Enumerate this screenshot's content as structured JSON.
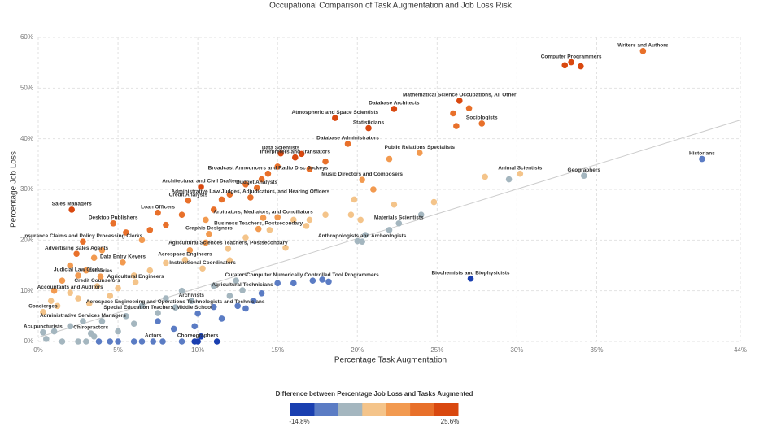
{
  "chart_data": {
    "type": "scatter",
    "title": "Occupational Comparison of Task Augmentation and Job Loss Risk",
    "x_label": "Percentage Task Augmentation",
    "y_label": "Percentage Job Loss",
    "xlim": [
      0,
      44
    ],
    "ylim": [
      0,
      60
    ],
    "xticks": [
      {
        "value": 0,
        "label": "0%"
      },
      {
        "value": 5,
        "label": "5%"
      },
      {
        "value": 10,
        "label": "10%"
      },
      {
        "value": 15,
        "label": "15%"
      },
      {
        "value": 20,
        "label": "20%"
      },
      {
        "value": 25,
        "label": "25%"
      },
      {
        "value": 30,
        "label": "30%"
      },
      {
        "value": 35,
        "label": "35%"
      },
      {
        "value": 44,
        "label": "44%"
      }
    ],
    "yticks": [
      {
        "value": 0,
        "label": "0%"
      },
      {
        "value": 10,
        "label": "10%"
      },
      {
        "value": 20,
        "label": "20%"
      },
      {
        "value": 30,
        "label": "30%"
      },
      {
        "value": 40,
        "label": "40%"
      },
      {
        "value": 50,
        "label": "50%"
      },
      {
        "value": 60,
        "label": "60%"
      }
    ],
    "grid": true,
    "x": [
      37.9,
      33.4,
      26.4,
      22.3,
      18.6,
      27.8,
      20.7,
      19.4,
      23.9,
      15.2,
      16.1,
      41.6,
      30.2,
      34.2,
      14.4,
      20.3,
      10.2,
      13.7,
      13.3,
      9.4,
      2.1,
      7.5,
      14.1,
      22.6,
      4.7,
      13.8,
      10.7,
      20.3,
      2.8,
      11.9,
      2.4,
      9.2,
      5.3,
      10.3,
      2.5,
      3.9,
      17.2,
      27.1,
      12.4,
      6.1,
      3.7,
      12.8,
      9.6,
      8.6,
      7.5,
      0.3,
      2.0,
      2.8,
      0.3,
      3.3,
      7.2,
      10.0,
      33.0,
      34.0,
      26.0,
      27.0,
      26.2,
      29.5,
      28.0,
      24.8,
      24.0,
      22.3,
      19.8,
      19.6,
      21.0,
      20.2,
      22.0,
      18.0,
      17.0,
      16.5,
      15.0,
      14.0,
      13.0,
      12.0,
      11.5,
      11.0,
      10.5,
      9.0,
      8.0,
      7.0,
      6.5,
      5.5,
      4.0,
      3.5,
      3.0,
      2.0,
      1.5,
      1.0,
      0.8,
      1.2,
      2.5,
      3.2,
      4.5,
      5.0,
      6.0,
      7.0,
      8.0,
      9.5,
      10.5,
      13.0,
      14.5,
      15.0,
      16.0,
      15.5,
      12.0,
      11.0,
      9.0,
      8.0,
      6.5,
      5.5,
      4.0,
      2.0,
      1.0,
      0.5,
      1.5,
      2.5,
      3.0,
      3.8,
      4.5,
      5.0,
      6.0,
      6.5,
      7.8,
      9.0,
      9.8,
      11.2,
      10.0,
      11.0,
      12.0,
      12.5,
      13.5,
      14.0,
      15.0,
      16.0,
      17.8,
      18.2,
      10.2,
      11.5,
      13.0,
      9.8,
      8.5,
      7.5,
      6.0,
      5.0,
      3.5,
      20.5,
      22.0,
      18.0,
      17.0,
      16.8,
      20.0
    ],
    "values": [
      57.3,
      55.1,
      47.5,
      45.9,
      44.1,
      43.0,
      42.1,
      39.0,
      37.2,
      37.1,
      36.3,
      36.0,
      33.1,
      32.7,
      33.1,
      31.9,
      30.5,
      30.3,
      28.4,
      27.8,
      26.0,
      25.4,
      24.4,
      23.3,
      23.3,
      22.2,
      21.2,
      19.7,
      19.7,
      18.3,
      17.3,
      16.1,
      15.6,
      14.4,
      13.0,
      12.8,
      12.0,
      12.4,
      12.0,
      11.7,
      10.9,
      10.1,
      8.0,
      6.7,
      5.6,
      5.8,
      9.6,
      4.0,
      1.8,
      1.6,
      0,
      0,
      54.5,
      54.3,
      45.0,
      46.0,
      42.5,
      32.0,
      32.5,
      27.5,
      25.0,
      27.0,
      28.0,
      25.0,
      30.0,
      24.0,
      36.0,
      35.5,
      34.0,
      37.0,
      34.5,
      32.0,
      31.0,
      29.0,
      28.0,
      26.0,
      24.0,
      25.0,
      23.0,
      22.0,
      20.0,
      21.5,
      18.0,
      16.5,
      14.0,
      15.0,
      12.0,
      10.0,
      8.0,
      7.0,
      8.5,
      7.5,
      9.0,
      10.5,
      13.0,
      14.0,
      15.5,
      18.0,
      19.5,
      20.5,
      22.0,
      24.5,
      24.0,
      18.5,
      16.0,
      11.0,
      10.0,
      8.5,
      7.0,
      5.0,
      4.0,
      3.0,
      2.0,
      0.5,
      0,
      0,
      0,
      0,
      0,
      0,
      0,
      0,
      0,
      0,
      0,
      0,
      5.5,
      6.8,
      9.0,
      7.0,
      8.0,
      9.5,
      11.5,
      11.5,
      12.2,
      11.8,
      1.0,
      4.5,
      6.5,
      3.0,
      2.5,
      4.0,
      3.5,
      2.0,
      1.0,
      21.0,
      22.0,
      25.0,
      24.0,
      22.8,
      19.8
    ],
    "labels": [
      "Writers and Authors",
      "Computer Programmers",
      "Mathematical Science Occupations, All Other",
      "Database Architects",
      "Atmospheric and Space Scientists",
      "Sociologists",
      "Statisticians",
      "Database Administrators",
      "Public Relations Specialists",
      "Data Scientists",
      "Interpreters and Translators",
      "Historians",
      "Animal Scientists",
      "Geographers",
      "Broadcast Announcers and Radio Disc Jockeys",
      "Music Directors and Composers",
      "Architectural and Civil Drafters",
      "Budget Analysts",
      "Administrative Law Judges, Adjudicators, and Hearing Officers",
      "Credit Analysts",
      "Sales Managers",
      "Loan Officers",
      "Arbitrators, Mediators, and Conciliators",
      "Materials Scientists",
      "Desktop Publishers",
      "Business Teachers, Postsecondary",
      "Graphic Designers",
      "Anthropologists and Archeologists",
      "Insurance Claims and Policy Processing Clerks",
      "Agricultural Sciences Teachers, Postsecondary",
      "Advertising Sales Agents",
      "Aerospace Engineers",
      "Data Entry Keyers",
      "Instructional Coordinators",
      "Judicial Law Clerks",
      "Actuaries",
      "Computer Numerically Controlled Tool Programmers",
      "Biochemists and Biophysicists",
      "Curators",
      "Agricultural Engineers",
      "Credit Counselors",
      "Agricultural Technicians",
      "Archivists",
      "Aerospace Engineering and Operations Technologists and Technicians",
      "Special Education Teachers, Middle School",
      "Concierges",
      "Accountants and Auditors",
      "Administrative Services Managers",
      "Acupuncturists",
      "Chiropractors",
      "Actors",
      "Choreographers",
      null,
      null,
      null,
      null,
      null,
      null,
      null,
      null,
      null,
      null,
      null,
      null,
      null,
      null,
      null,
      null,
      null,
      null,
      null,
      null,
      null,
      null,
      null,
      null,
      null,
      null,
      null,
      null,
      null,
      null,
      null,
      null,
      null,
      null,
      null,
      null,
      null,
      null,
      null,
      null,
      null,
      null,
      null,
      null,
      null,
      null,
      null,
      null,
      null,
      null,
      null,
      null,
      null,
      null,
      null,
      null,
      null,
      null,
      null,
      null,
      null,
      null,
      null,
      null,
      null,
      null,
      null,
      null,
      null,
      null,
      null,
      null,
      null,
      null,
      null,
      null,
      null,
      null,
      null,
      null,
      null,
      null,
      null,
      null,
      null,
      null,
      null,
      null,
      null,
      null,
      null,
      null,
      null,
      null,
      null,
      null,
      null,
      null
    ],
    "trendline": {
      "x": [
        0,
        44
      ],
      "values": [
        0.8,
        43.7
      ],
      "color": "#cccccc"
    },
    "colorbar": {
      "title": "Difference between Percentage Job Loss and Tasks Augmented",
      "colors": [
        "#1a3fb0",
        "#5b7cc4",
        "#a4b6bf",
        "#f4c48a",
        "#f29a50",
        "#e8702a",
        "#d9480f"
      ],
      "range": [
        {
          "value": -14.8,
          "label": "-14.8%"
        },
        {
          "value": 25.6,
          "label": "25.6%"
        }
      ]
    }
  }
}
